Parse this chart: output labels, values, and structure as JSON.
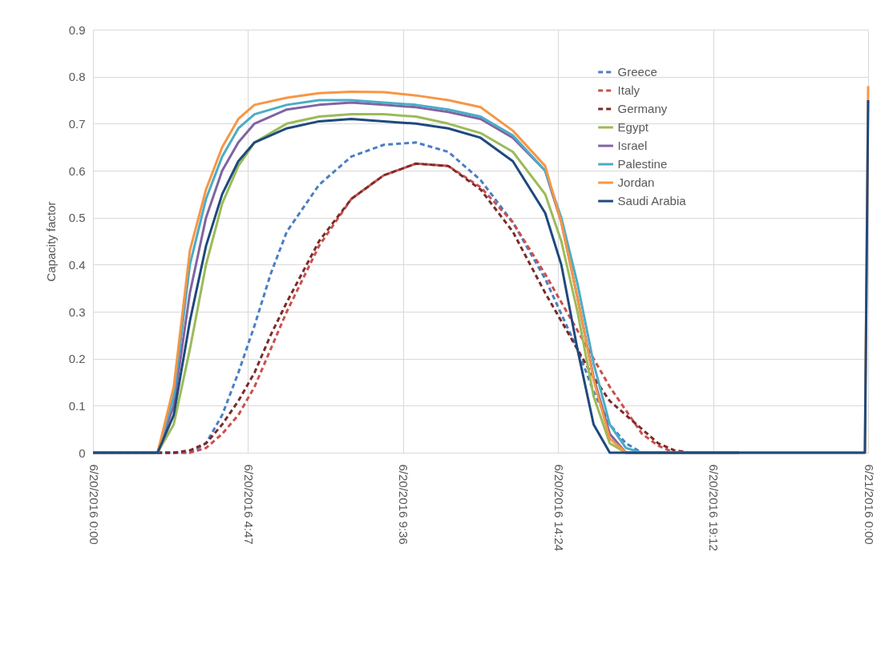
{
  "chart_data": {
    "type": "line",
    "ylabel": "Capacity factor",
    "xlim": [
      "2016-06-20T00:00",
      "2016-06-21T00:00"
    ],
    "xticks": [
      {
        "value": "2016-06-20T00:00",
        "label": "6/20/2016 0:00"
      },
      {
        "value": "2016-06-20T04:48",
        "label": "6/20/2016 4:47"
      },
      {
        "value": "2016-06-20T09:36",
        "label": "6/20/2016 9:36"
      },
      {
        "value": "2016-06-20T14:24",
        "label": "6/20/2016 14:24"
      },
      {
        "value": "2016-06-20T19:12",
        "label": "6/20/2016 19:12"
      },
      {
        "value": "2016-06-21T00:00",
        "label": "6/21/2016 0:00"
      }
    ],
    "ylim": [
      0,
      0.9
    ],
    "yticks": [
      0,
      0.1,
      0.2,
      0.3,
      0.4,
      0.5,
      0.6,
      0.7,
      0.8,
      0.9
    ],
    "grid": true,
    "legend": "top right",
    "marker": "none",
    "series": [
      {
        "name": "Greece",
        "color": "#4a7ec3",
        "line_style": "dashed",
        "x": [
          "2016-06-20T02:00",
          "2016-06-20T03:00",
          "2016-06-20T03:30",
          "2016-06-20T04:00",
          "2016-06-20T04:30",
          "2016-06-20T05:00",
          "2016-06-20T05:30",
          "2016-06-20T06:00",
          "2016-06-20T07:00",
          "2016-06-20T08:00",
          "2016-06-20T09:00",
          "2016-06-20T10:00",
          "2016-06-20T11:00",
          "2016-06-20T12:00",
          "2016-06-20T13:00",
          "2016-06-20T14:00",
          "2016-06-20T15:00",
          "2016-06-20T15:30",
          "2016-06-20T16:00",
          "2016-06-20T16:30",
          "2016-06-20T17:00",
          "2016-06-20T18:00",
          "2016-06-20T20:00"
        ],
        "values": [
          0,
          0,
          0.02,
          0.08,
          0.17,
          0.27,
          0.38,
          0.47,
          0.57,
          0.63,
          0.655,
          0.66,
          0.64,
          0.58,
          0.49,
          0.37,
          0.22,
          0.13,
          0.06,
          0.02,
          0,
          0,
          0
        ]
      },
      {
        "name": "Italy",
        "color": "#c9504c",
        "line_style": "dashed",
        "x": [
          "2016-06-20T00:00",
          "2016-06-20T01:00",
          "2016-06-20T02:00",
          "2016-06-20T03:00",
          "2016-06-20T03:30",
          "2016-06-20T04:00",
          "2016-06-20T04:30",
          "2016-06-20T05:00",
          "2016-06-20T05:30",
          "2016-06-20T06:00",
          "2016-06-20T07:00",
          "2016-06-20T08:00",
          "2016-06-20T09:00",
          "2016-06-20T10:00",
          "2016-06-20T11:00",
          "2016-06-20T12:00",
          "2016-06-20T13:00",
          "2016-06-20T14:00",
          "2016-06-20T15:00",
          "2016-06-20T15:30",
          "2016-06-20T16:00",
          "2016-06-20T16:30",
          "2016-06-20T17:00",
          "2016-06-20T17:30",
          "2016-06-20T18:00",
          "2016-06-20T20:00"
        ],
        "values": [
          0,
          0,
          0,
          0,
          0.01,
          0.04,
          0.08,
          0.14,
          0.22,
          0.3,
          0.44,
          0.54,
          0.59,
          0.615,
          0.61,
          0.565,
          0.49,
          0.38,
          0.26,
          0.2,
          0.14,
          0.09,
          0.04,
          0.015,
          0,
          0
        ]
      },
      {
        "name": "Germany",
        "color": "#7b2a2a",
        "line_style": "dashed",
        "x": [
          "2016-06-20T00:00",
          "2016-06-20T01:00",
          "2016-06-20T02:00",
          "2016-06-20T02:30",
          "2016-06-20T03:00",
          "2016-06-20T03:30",
          "2016-06-20T04:00",
          "2016-06-20T04:30",
          "2016-06-20T05:00",
          "2016-06-20T05:30",
          "2016-06-20T06:00",
          "2016-06-20T07:00",
          "2016-06-20T08:00",
          "2016-06-20T09:00",
          "2016-06-20T10:00",
          "2016-06-20T11:00",
          "2016-06-20T12:00",
          "2016-06-20T13:00",
          "2016-06-20T14:00",
          "2016-06-20T15:00",
          "2016-06-20T15:30",
          "2016-06-20T16:00",
          "2016-06-20T17:00",
          "2016-06-20T17:30",
          "2016-06-20T18:00",
          "2016-06-20T18:30",
          "2016-06-20T20:00"
        ],
        "values": [
          0,
          0,
          0,
          0,
          0.005,
          0.02,
          0.06,
          0.11,
          0.17,
          0.25,
          0.32,
          0.45,
          0.54,
          0.59,
          0.615,
          0.61,
          0.56,
          0.47,
          0.34,
          0.22,
          0.16,
          0.11,
          0.05,
          0.02,
          0.005,
          0,
          0
        ]
      },
      {
        "name": "Egypt",
        "color": "#9bbb59",
        "line_style": "solid",
        "x": [
          "2016-06-20T00:00",
          "2016-06-20T01:00",
          "2016-06-20T02:00",
          "2016-06-20T02:30",
          "2016-06-20T03:00",
          "2016-06-20T03:30",
          "2016-06-20T04:00",
          "2016-06-20T04:30",
          "2016-06-20T05:00",
          "2016-06-20T06:00",
          "2016-06-20T07:00",
          "2016-06-20T08:00",
          "2016-06-20T09:00",
          "2016-06-20T10:00",
          "2016-06-20T11:00",
          "2016-06-20T12:00",
          "2016-06-20T13:00",
          "2016-06-20T14:00",
          "2016-06-20T14:30",
          "2016-06-20T15:00",
          "2016-06-20T15:30",
          "2016-06-20T16:00",
          "2016-06-20T16:30",
          "2016-06-20T20:00"
        ],
        "values": [
          0,
          0,
          0,
          0.06,
          0.22,
          0.4,
          0.53,
          0.61,
          0.66,
          0.7,
          0.715,
          0.72,
          0.72,
          0.715,
          0.7,
          0.68,
          0.64,
          0.55,
          0.45,
          0.3,
          0.12,
          0.02,
          0,
          0
        ]
      },
      {
        "name": "Israel",
        "color": "#8064a2",
        "line_style": "solid",
        "x": [
          "2016-06-20T00:00",
          "2016-06-20T01:00",
          "2016-06-20T02:00",
          "2016-06-20T02:30",
          "2016-06-20T03:00",
          "2016-06-20T03:30",
          "2016-06-20T04:00",
          "2016-06-20T04:30",
          "2016-06-20T05:00",
          "2016-06-20T06:00",
          "2016-06-20T07:00",
          "2016-06-20T08:00",
          "2016-06-20T09:00",
          "2016-06-20T10:00",
          "2016-06-20T11:00",
          "2016-06-20T12:00",
          "2016-06-20T13:00",
          "2016-06-20T14:00",
          "2016-06-20T14:30",
          "2016-06-20T15:00",
          "2016-06-20T15:30",
          "2016-06-20T16:00",
          "2016-06-20T16:30",
          "2016-06-20T20:00"
        ],
        "values": [
          0,
          0,
          0,
          0.1,
          0.34,
          0.5,
          0.6,
          0.66,
          0.7,
          0.73,
          0.74,
          0.745,
          0.74,
          0.735,
          0.725,
          0.71,
          0.67,
          0.6,
          0.49,
          0.33,
          0.16,
          0.04,
          0,
          0
        ]
      },
      {
        "name": "Palestine",
        "color": "#4bacc6",
        "line_style": "solid",
        "x": [
          "2016-06-20T00:00",
          "2016-06-20T01:00",
          "2016-06-20T02:00",
          "2016-06-20T02:30",
          "2016-06-20T03:00",
          "2016-06-20T03:30",
          "2016-06-20T04:00",
          "2016-06-20T04:30",
          "2016-06-20T05:00",
          "2016-06-20T06:00",
          "2016-06-20T07:00",
          "2016-06-20T08:00",
          "2016-06-20T09:00",
          "2016-06-20T10:00",
          "2016-06-20T11:00",
          "2016-06-20T12:00",
          "2016-06-20T13:00",
          "2016-06-20T14:00",
          "2016-06-20T14:30",
          "2016-06-20T15:00",
          "2016-06-20T15:30",
          "2016-06-20T16:00",
          "2016-06-20T16:30",
          "2016-06-20T17:00",
          "2016-06-20T20:00"
        ],
        "values": [
          0,
          0,
          0,
          0.12,
          0.4,
          0.54,
          0.63,
          0.69,
          0.72,
          0.74,
          0.75,
          0.75,
          0.745,
          0.74,
          0.73,
          0.715,
          0.675,
          0.6,
          0.5,
          0.36,
          0.19,
          0.06,
          0.01,
          0,
          0
        ]
      },
      {
        "name": "Jordan",
        "color": "#f79646",
        "line_style": "solid",
        "x": [
          "2016-06-20T00:00",
          "2016-06-20T01:00",
          "2016-06-20T02:00",
          "2016-06-20T02:30",
          "2016-06-20T03:00",
          "2016-06-20T03:30",
          "2016-06-20T04:00",
          "2016-06-20T04:30",
          "2016-06-20T05:00",
          "2016-06-20T06:00",
          "2016-06-20T07:00",
          "2016-06-20T08:00",
          "2016-06-20T09:00",
          "2016-06-20T10:00",
          "2016-06-20T11:00",
          "2016-06-20T12:00",
          "2016-06-20T13:00",
          "2016-06-20T14:00",
          "2016-06-20T14:30",
          "2016-06-20T15:00",
          "2016-06-20T15:30",
          "2016-06-20T16:00",
          "2016-06-20T16:30",
          "2016-06-20T20:00",
          "2016-06-20T23:54",
          "2016-06-21T00:00"
        ],
        "values": [
          0,
          0,
          0,
          0.14,
          0.43,
          0.56,
          0.65,
          0.71,
          0.74,
          0.755,
          0.765,
          0.768,
          0.767,
          0.76,
          0.75,
          0.735,
          0.685,
          0.61,
          0.49,
          0.33,
          0.155,
          0.03,
          0,
          0,
          0,
          0.78
        ]
      },
      {
        "name": "Saudi Arabia",
        "color": "#1f497d",
        "line_style": "solid",
        "x": [
          "2016-06-20T00:00",
          "2016-06-20T01:00",
          "2016-06-20T02:00",
          "2016-06-20T02:30",
          "2016-06-20T03:00",
          "2016-06-20T03:30",
          "2016-06-20T04:00",
          "2016-06-20T04:30",
          "2016-06-20T05:00",
          "2016-06-20T06:00",
          "2016-06-20T07:00",
          "2016-06-20T08:00",
          "2016-06-20T09:00",
          "2016-06-20T10:00",
          "2016-06-20T11:00",
          "2016-06-20T12:00",
          "2016-06-20T13:00",
          "2016-06-20T14:00",
          "2016-06-20T14:30",
          "2016-06-20T15:00",
          "2016-06-20T15:30",
          "2016-06-20T16:00",
          "2016-06-20T16:30",
          "2016-06-20T20:00",
          "2016-06-20T23:54",
          "2016-06-21T00:00"
        ],
        "values": [
          0,
          0,
          0,
          0.08,
          0.28,
          0.44,
          0.55,
          0.62,
          0.66,
          0.69,
          0.705,
          0.71,
          0.705,
          0.7,
          0.69,
          0.67,
          0.62,
          0.51,
          0.4,
          0.22,
          0.06,
          0,
          0,
          0,
          0,
          0.75
        ]
      }
    ]
  }
}
